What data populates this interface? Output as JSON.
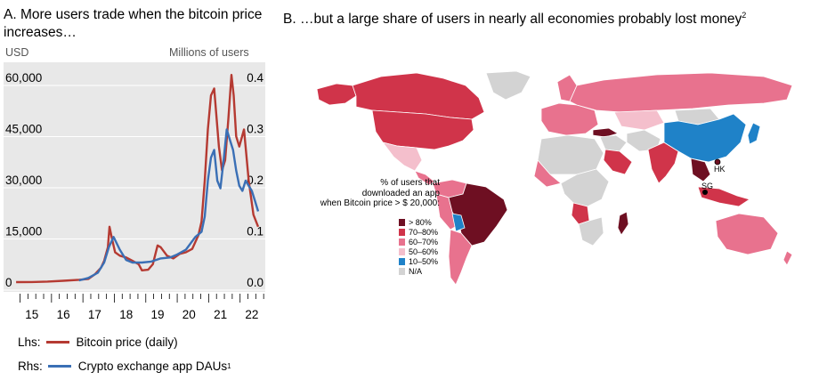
{
  "panel_a": {
    "title": "A. More users trade when the bitcoin price increases…",
    "lhs_unit": "USD",
    "rhs_unit": "Millions of users",
    "legend": [
      {
        "prefix": "Lhs:",
        "label": "Bitcoin price (daily)",
        "color": "#b53a32"
      },
      {
        "prefix": "Rhs:",
        "label": "Crypto exchange app DAUs",
        "sup": "1",
        "color": "#3a6fb5"
      }
    ]
  },
  "panel_b": {
    "title": "B. …but a large share of users in nearly all economies probably lost money",
    "title_sup": "2",
    "legend_heading": [
      "% of users that",
      "downloaded an app",
      "when Bitcoin price > $ 20,000:"
    ],
    "legend_items": [
      {
        "label": "> 80%",
        "color": "#6e0f22"
      },
      {
        "label": "70–80%",
        "color": "#d0344a"
      },
      {
        "label": "60–70%",
        "color": "#e8728e"
      },
      {
        "label": "50–60%",
        "color": "#f4bfcc"
      },
      {
        "label": "10–50%",
        "color": "#1f82c8"
      },
      {
        "label": "N/A",
        "color": "#d3d3d3"
      }
    ],
    "map_labels": [
      "HK",
      "SG"
    ]
  },
  "chart_data": [
    {
      "type": "line",
      "title": "A. More users trade when the bitcoin price increases…",
      "xlabel": "",
      "x_ticks": [
        "15",
        "16",
        "17",
        "18",
        "19",
        "20",
        "21",
        "22"
      ],
      "xlim": [
        2014.6,
        2022.7
      ],
      "y_left": {
        "label": "USD",
        "ticks": [
          "0",
          "15,000",
          "30,000",
          "45,000",
          "60,000"
        ],
        "lim": [
          0,
          60000
        ]
      },
      "y_right": {
        "label": "Millions of users",
        "ticks": [
          "0.0",
          "0.1",
          "0.2",
          "0.3",
          "0.4"
        ],
        "lim": [
          0,
          0.4
        ]
      },
      "series": [
        {
          "name": "Bitcoin price (daily)",
          "axis": "left",
          "color": "#b53a32",
          "x": [
            2015.0,
            2015.5,
            2016.0,
            2016.5,
            2017.0,
            2017.3,
            2017.5,
            2017.7,
            2017.8,
            2017.92,
            2017.97,
            2018.05,
            2018.15,
            2018.3,
            2018.5,
            2018.7,
            2018.9,
            2019.0,
            2019.2,
            2019.35,
            2019.5,
            2019.6,
            2019.8,
            2020.0,
            2020.2,
            2020.4,
            2020.6,
            2020.8,
            2020.9,
            2021.0,
            2021.1,
            2021.2,
            2021.3,
            2021.45,
            2021.55,
            2021.65,
            2021.75,
            2021.85,
            2021.92,
            2022.0,
            2022.1,
            2022.25,
            2022.4,
            2022.55,
            2022.7
          ],
          "values": [
            250,
            300,
            420,
            650,
            950,
            1200,
            2500,
            4500,
            6500,
            10500,
            16500,
            13000,
            9000,
            8000,
            7500,
            6500,
            5500,
            3700,
            3900,
            5500,
            11000,
            10500,
            8000,
            7200,
            8500,
            9000,
            10000,
            14000,
            18000,
            30000,
            45000,
            55000,
            57000,
            40000,
            33000,
            36000,
            48000,
            61000,
            55000,
            43000,
            40000,
            45000,
            30000,
            20000,
            16500
          ]
        },
        {
          "name": "Crypto exchange app DAUs",
          "axis": "right",
          "color": "#3a6fb5",
          "x": [
            2017.0,
            2017.3,
            2017.6,
            2017.8,
            2017.95,
            2018.1,
            2018.3,
            2018.5,
            2018.7,
            2019.0,
            2019.3,
            2019.6,
            2019.9,
            2020.1,
            2020.4,
            2020.7,
            2020.9,
            2021.0,
            2021.1,
            2021.2,
            2021.3,
            2021.4,
            2021.5,
            2021.6,
            2021.7,
            2021.8,
            2021.9,
            2022.0,
            2022.1,
            2022.2,
            2022.3,
            2022.4,
            2022.5,
            2022.6,
            2022.7
          ],
          "values": [
            0.005,
            0.01,
            0.02,
            0.04,
            0.07,
            0.09,
            0.065,
            0.045,
            0.04,
            0.04,
            0.042,
            0.048,
            0.05,
            0.055,
            0.065,
            0.09,
            0.1,
            0.13,
            0.2,
            0.245,
            0.26,
            0.2,
            0.185,
            0.24,
            0.3,
            0.28,
            0.26,
            0.22,
            0.19,
            0.18,
            0.2,
            0.19,
            0.18,
            0.16,
            0.14
          ]
        }
      ]
    },
    {
      "type": "choropleth",
      "title": "B. …but a large share of users in nearly all economies probably lost money",
      "legend_title": "% of users that downloaded an app when Bitcoin price > $ 20,000:",
      "categories": [
        "> 80%",
        "70–80%",
        "60–70%",
        "50–60%",
        "10–50%",
        "N/A"
      ],
      "regions": [
        {
          "name": "Canada",
          "category": "70–80%"
        },
        {
          "name": "United States",
          "category": "70–80%"
        },
        {
          "name": "Alaska",
          "category": "70–80%"
        },
        {
          "name": "Mexico",
          "category": "50–60%"
        },
        {
          "name": "Brazil",
          "category": "> 80%"
        },
        {
          "name": "Bolivia",
          "category": "10–50%"
        },
        {
          "name": "Argentina and Chile",
          "category": "60–70%"
        },
        {
          "name": "Peru and Colombia",
          "category": "60–70%"
        },
        {
          "name": "Russia",
          "category": "60–70%"
        },
        {
          "name": "Europe",
          "category": "60–70%"
        },
        {
          "name": "Turkey",
          "category": "> 80%"
        },
        {
          "name": "Saudi Arabia",
          "category": "70–80%"
        },
        {
          "name": "India",
          "category": "70–80%"
        },
        {
          "name": "China",
          "category": "10–50%"
        },
        {
          "name": "Japan",
          "category": "10–50%"
        },
        {
          "name": "Southeast Asia",
          "category": "> 80%"
        },
        {
          "name": "Indonesia",
          "category": "70–80%"
        },
        {
          "name": "Australia",
          "category": "60–70%"
        },
        {
          "name": "Madagascar",
          "category": "> 80%"
        },
        {
          "name": "Angola",
          "category": "70–80%"
        },
        {
          "name": "Central Africa",
          "category": "N/A"
        },
        {
          "name": "Greenland",
          "category": "N/A"
        }
      ],
      "annotations": [
        "HK",
        "SG"
      ]
    }
  ]
}
